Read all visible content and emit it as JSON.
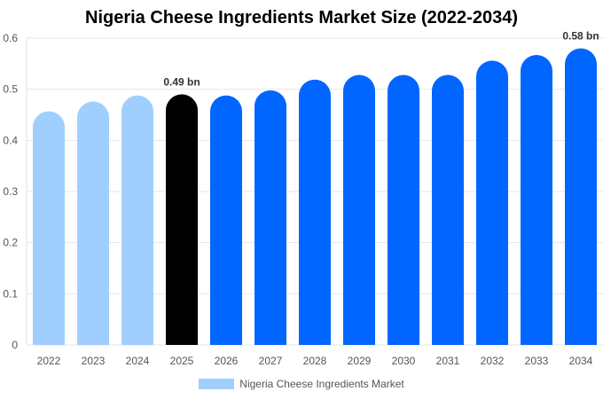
{
  "chart_data": {
    "type": "bar",
    "title": "Nigeria Cheese Ingredients Market Size (2022-2034)",
    "xlabel": "",
    "ylabel": "",
    "ylim": [
      0,
      0.6
    ],
    "yticks": [
      "0",
      "0.1",
      "0.2",
      "0.3",
      "0.4",
      "0.5",
      "0.6"
    ],
    "categories": [
      "2022",
      "2023",
      "2024",
      "2025",
      "2026",
      "2027",
      "2028",
      "2029",
      "2030",
      "2031",
      "2032",
      "2033",
      "2034"
    ],
    "series": [
      {
        "name": "Nigeria Cheese Ingredients Market",
        "values": [
          0.457,
          0.476,
          0.488,
          0.49,
          0.488,
          0.498,
          0.519,
          0.528,
          0.528,
          0.528,
          0.556,
          0.567,
          0.58
        ]
      }
    ],
    "bar_colors": [
      "#a0cfff",
      "#a0cfff",
      "#a0cfff",
      "#000000",
      "#0066ff",
      "#0066ff",
      "#0066ff",
      "#0066ff",
      "#0066ff",
      "#0066ff",
      "#0066ff",
      "#0066ff",
      "#0066ff"
    ],
    "data_labels": [
      {
        "category": "2025",
        "text": "0.49 bn"
      },
      {
        "category": "2034",
        "text": "0.58 bn"
      }
    ],
    "legend": {
      "label": "Nigeria Cheese Ingredients Market",
      "color": "#a0cfff",
      "position": "bottom"
    },
    "grid": true
  }
}
